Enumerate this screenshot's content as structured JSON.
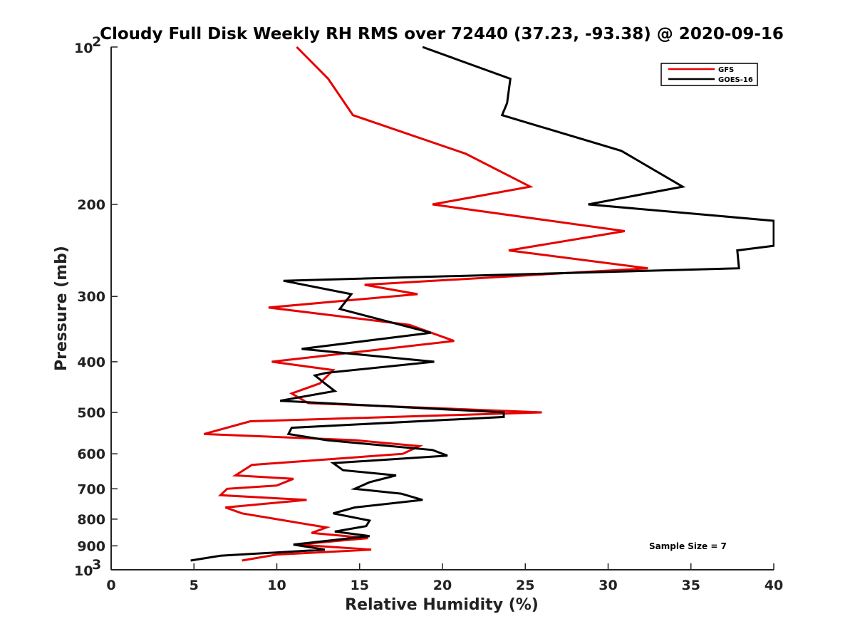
{
  "chart_data": {
    "type": "line",
    "title": "Cloudy Full Disk Weekly RH RMS over 72440 (37.23, -93.38) @ 2020-09-16",
    "xlabel": "Relative Humidity (%)",
    "ylabel": "Pressure (mb)",
    "xlim": [
      0,
      40
    ],
    "ylim": [
      100,
      1000
    ],
    "yscale": "log",
    "y_reversed": true,
    "x_ticks": [
      "0",
      "5",
      "10",
      "15",
      "20",
      "25",
      "30",
      "35",
      "40"
    ],
    "y_ticks": [
      {
        "value": 100,
        "base": "10",
        "exp": "2"
      },
      {
        "value": 200,
        "label": "200"
      },
      {
        "value": 300,
        "label": "300"
      },
      {
        "value": 400,
        "label": "400"
      },
      {
        "value": 500,
        "label": "500"
      },
      {
        "value": 600,
        "label": "600"
      },
      {
        "value": 700,
        "label": "700"
      },
      {
        "value": 800,
        "label": "800"
      },
      {
        "value": 900,
        "label": "900"
      },
      {
        "value": 1000,
        "base": "10",
        "exp": "3"
      }
    ],
    "grid": false,
    "legend_position": "top-right",
    "annotation": "Sample Size = 7",
    "series": [
      {
        "name": "GFS",
        "color": "#e60000",
        "points": [
          [
            11.2,
            100
          ],
          [
            13.1,
            115
          ],
          [
            14.6,
            135
          ],
          [
            21.4,
            160
          ],
          [
            25.3,
            185
          ],
          [
            19.4,
            200
          ],
          [
            31.0,
            225
          ],
          [
            24.0,
            245
          ],
          [
            32.4,
            265
          ],
          [
            15.3,
            285
          ],
          [
            18.5,
            297
          ],
          [
            9.5,
            315
          ],
          [
            18.0,
            340
          ],
          [
            20.7,
            365
          ],
          [
            9.7,
            400
          ],
          [
            13.4,
            415
          ],
          [
            12.6,
            440
          ],
          [
            10.9,
            460
          ],
          [
            11.9,
            480
          ],
          [
            26.0,
            500
          ],
          [
            8.4,
            520
          ],
          [
            5.6,
            550
          ],
          [
            14.7,
            565
          ],
          [
            18.6,
            580
          ],
          [
            17.6,
            600
          ],
          [
            8.5,
            630
          ],
          [
            7.5,
            660
          ],
          [
            11.0,
            670
          ],
          [
            10.0,
            690
          ],
          [
            7.0,
            700
          ],
          [
            6.6,
            720
          ],
          [
            11.8,
            735
          ],
          [
            6.9,
            760
          ],
          [
            7.9,
            780
          ],
          [
            11.5,
            815
          ],
          [
            13.0,
            830
          ],
          [
            12.1,
            850
          ],
          [
            15.5,
            870
          ],
          [
            11.2,
            895
          ],
          [
            15.7,
            915
          ],
          [
            10.0,
            935
          ],
          [
            7.9,
            960
          ]
        ]
      },
      {
        "name": "GOES-16",
        "color": "#000000",
        "points": [
          [
            18.8,
            100
          ],
          [
            24.1,
            115
          ],
          [
            23.9,
            128
          ],
          [
            23.6,
            135
          ],
          [
            30.8,
            158
          ],
          [
            34.5,
            185
          ],
          [
            28.8,
            200
          ],
          [
            40.0,
            215
          ],
          [
            40.0,
            240
          ],
          [
            37.8,
            245
          ],
          [
            37.9,
            265
          ],
          [
            10.4,
            280
          ],
          [
            14.5,
            297
          ],
          [
            13.8,
            317
          ],
          [
            19.3,
            352
          ],
          [
            11.5,
            378
          ],
          [
            19.5,
            400
          ],
          [
            13.0,
            420
          ],
          [
            12.3,
            425
          ],
          [
            12.9,
            440
          ],
          [
            13.5,
            455
          ],
          [
            10.2,
            475
          ],
          [
            23.7,
            500
          ],
          [
            23.7,
            510
          ],
          [
            10.9,
            535
          ],
          [
            10.7,
            550
          ],
          [
            13.0,
            565
          ],
          [
            19.4,
            590
          ],
          [
            20.3,
            605
          ],
          [
            13.4,
            625
          ],
          [
            14.0,
            645
          ],
          [
            17.2,
            660
          ],
          [
            15.6,
            680
          ],
          [
            14.7,
            700
          ],
          [
            17.5,
            715
          ],
          [
            18.8,
            735
          ],
          [
            14.7,
            760
          ],
          [
            13.4,
            780
          ],
          [
            15.6,
            805
          ],
          [
            15.4,
            825
          ],
          [
            13.5,
            845
          ],
          [
            15.6,
            862
          ],
          [
            11.0,
            895
          ],
          [
            12.9,
            915
          ],
          [
            6.6,
            940
          ],
          [
            4.8,
            960
          ]
        ]
      }
    ]
  }
}
